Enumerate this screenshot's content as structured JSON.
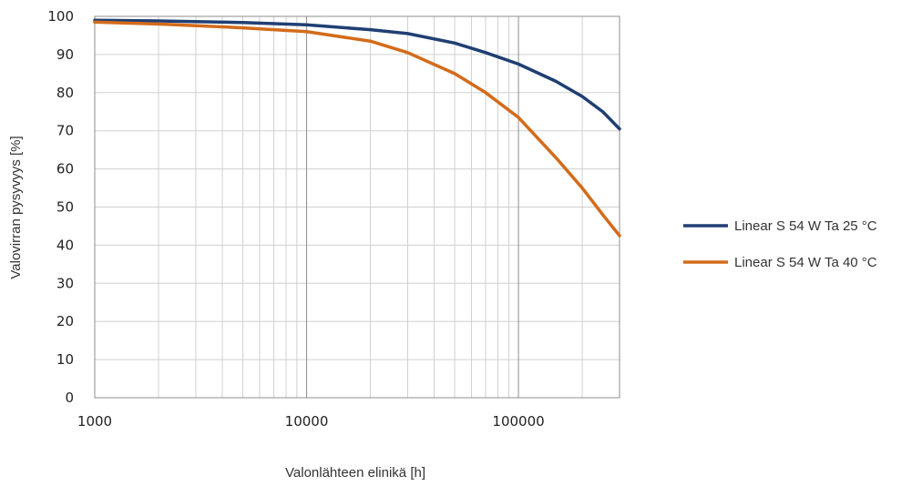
{
  "chart_data": {
    "type": "line",
    "xscale": "log",
    "xlim": [
      1000,
      300000
    ],
    "ylim": [
      0,
      100
    ],
    "xticks": [
      1000,
      10000,
      100000
    ],
    "xtick_labels": [
      "1000",
      "10000",
      "100000"
    ],
    "yticks": [
      0,
      10,
      20,
      30,
      40,
      50,
      60,
      70,
      80,
      90,
      100
    ],
    "ytick_labels": [
      "0",
      "10",
      "20",
      "30",
      "40",
      "50",
      "60",
      "70",
      "80",
      "90",
      "100"
    ],
    "xlabel": "Valonlähteen elinikä [h]",
    "ylabel": "Valovirran pysyvyys [%]",
    "grid": true,
    "legend_position": "right",
    "series": [
      {
        "name": "Linear S 54 W Ta 25 °C",
        "color": "#1f3f73",
        "x": [
          1000,
          2000,
          5000,
          10000,
          20000,
          30000,
          50000,
          70000,
          100000,
          150000,
          200000,
          250000,
          300000
        ],
        "y": [
          99,
          98.8,
          98.4,
          97.8,
          96.5,
          95.5,
          93,
          90.5,
          87.5,
          83,
          79,
          75,
          70.5
        ]
      },
      {
        "name": "Linear S 54 W Ta 40 °C",
        "color": "#d36b1a",
        "x": [
          1000,
          2000,
          5000,
          10000,
          20000,
          30000,
          50000,
          70000,
          100000,
          150000,
          200000,
          250000,
          300000
        ],
        "y": [
          98.5,
          98,
          97,
          96,
          93.5,
          90.5,
          85,
          80,
          73.5,
          63,
          55,
          48,
          42.5
        ]
      }
    ]
  }
}
